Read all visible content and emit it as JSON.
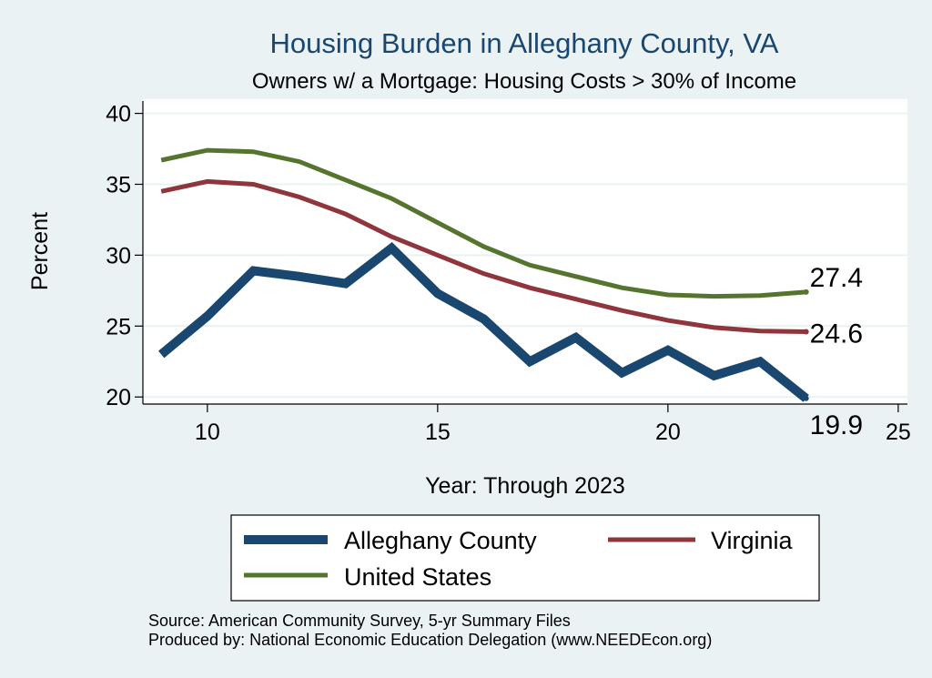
{
  "chart_data": {
    "type": "line",
    "title": "Housing Burden in Alleghany County, VA",
    "subtitle": "Owners w/ a Mortgage: Housing Costs > 30% of Income",
    "xlabel": "Year: Through 2023",
    "ylabel": "Percent",
    "xlim": [
      8.6,
      25.2
    ],
    "ylim": [
      19.5,
      41
    ],
    "xticks": [
      10,
      15,
      20,
      25
    ],
    "yticks": [
      20,
      25,
      30,
      35,
      40
    ],
    "grid": true,
    "legend_position": "bottom",
    "series": [
      {
        "name": "Alleghany County",
        "color": "#1a476f",
        "x": [
          9,
          10,
          11,
          12,
          13,
          14,
          15,
          16,
          17,
          18,
          19,
          20,
          21,
          22,
          23
        ],
        "y": [
          23.0,
          25.7,
          28.9,
          28.5,
          28.0,
          30.5,
          27.3,
          25.5,
          22.5,
          24.2,
          21.7,
          23.3,
          21.5,
          22.5,
          19.9
        ],
        "end_label": "19.9"
      },
      {
        "name": "Virginia",
        "color": "#90353b",
        "x": [
          9,
          10,
          11,
          12,
          13,
          14,
          15,
          16,
          17,
          18,
          19,
          20,
          21,
          22,
          23
        ],
        "y": [
          34.5,
          35.2,
          35.0,
          34.1,
          32.9,
          31.3,
          30.0,
          28.7,
          27.7,
          26.9,
          26.1,
          25.4,
          24.9,
          24.65,
          24.6
        ],
        "end_label": "24.6"
      },
      {
        "name": "United States",
        "color": "#55752f",
        "x": [
          9,
          10,
          11,
          12,
          13,
          14,
          15,
          16,
          17,
          18,
          19,
          20,
          21,
          22,
          23
        ],
        "y": [
          36.7,
          37.4,
          37.3,
          36.6,
          35.3,
          34.0,
          32.3,
          30.6,
          29.3,
          28.5,
          27.7,
          27.2,
          27.1,
          27.15,
          27.4
        ],
        "end_label": "27.4"
      }
    ]
  },
  "legend_items": [
    "Alleghany County",
    "Virginia",
    "United States"
  ],
  "notes": {
    "source": "Source: American Community Survey, 5-yr Summary Files",
    "produced_by": "Produced by: National Economic Education Delegation (www.NEEDEcon.org)"
  }
}
